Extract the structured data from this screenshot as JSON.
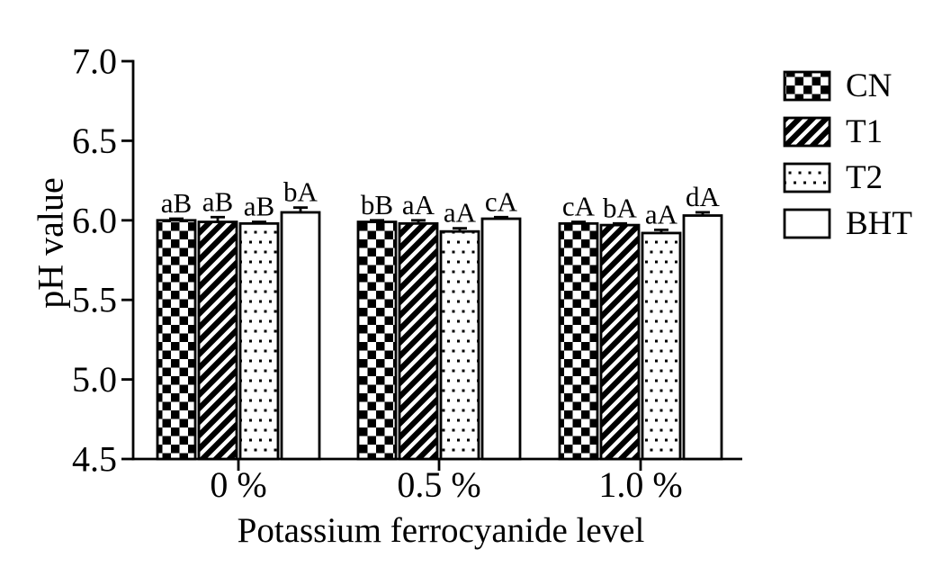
{
  "figure": {
    "background": "#ffffff",
    "ink": "#000000"
  },
  "chart_data": {
    "type": "bar",
    "title": "",
    "xlabel": "Potassium ferrocyanide level",
    "ylabel": "pH value",
    "ylim": [
      4.5,
      7.0
    ],
    "yticks": [
      "7.0",
      "6.5",
      "6.0",
      "5.5",
      "5.0",
      "4.5"
    ],
    "ytick_values": [
      7.0,
      6.5,
      6.0,
      5.5,
      5.0,
      4.5
    ],
    "categories": [
      "0 %",
      "0.5 %",
      "1.0 %"
    ],
    "grid": false,
    "legend_position": "top-right",
    "error_bars": "upper",
    "series": [
      {
        "name": "CN",
        "pattern": "checker",
        "values": [
          6.0,
          5.99,
          5.98
        ],
        "errors": [
          0.01,
          0.01,
          0.01
        ],
        "sig_labels": [
          "aB",
          "bB",
          "cA"
        ]
      },
      {
        "name": "T1",
        "pattern": "diagonal-stripes",
        "values": [
          5.99,
          5.98,
          5.97
        ],
        "errors": [
          0.03,
          0.02,
          0.01
        ],
        "sig_labels": [
          "aB",
          "aA",
          "bA"
        ]
      },
      {
        "name": "T2",
        "pattern": "dots",
        "values": [
          5.98,
          5.93,
          5.92
        ],
        "errors": [
          0.01,
          0.02,
          0.02
        ],
        "sig_labels": [
          "aB",
          "aA",
          "aA"
        ]
      },
      {
        "name": "BHT",
        "pattern": "plain",
        "values": [
          6.05,
          6.01,
          6.03
        ],
        "errors": [
          0.03,
          0.01,
          0.02
        ],
        "sig_labels": [
          "bA",
          "cA",
          "dA"
        ]
      }
    ]
  }
}
